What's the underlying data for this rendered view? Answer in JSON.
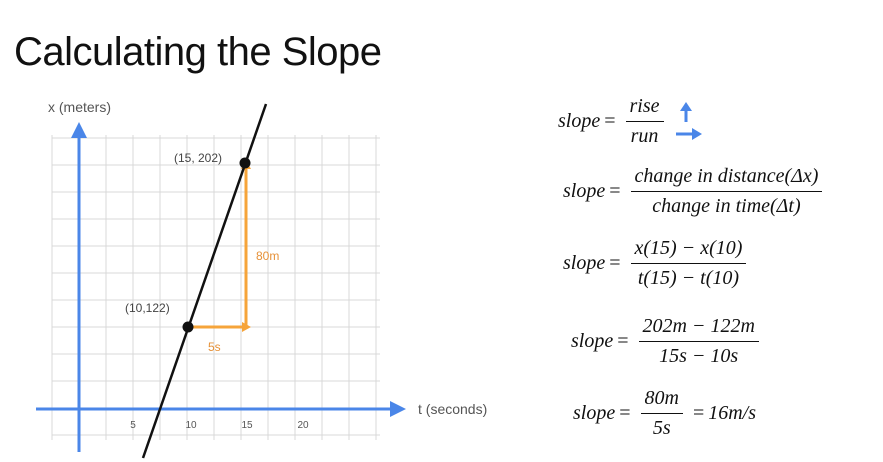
{
  "title": "Calculating the Slope",
  "graph": {
    "y_axis_label": "x (meters)",
    "x_axis_label": "t (seconds)",
    "x_ticks": [
      "5",
      "10",
      "15",
      "20"
    ],
    "point_a_label": "(10,122)",
    "point_b_label": "(15, 202)",
    "rise_label": "80m",
    "run_label": "5s",
    "colors": {
      "axis": "#4a86e8",
      "line": "#111111",
      "triangle": "#f6a43a",
      "grid": "#d9d9d9"
    }
  },
  "equations": {
    "eq1": {
      "lhs": "slope",
      "eq": "=",
      "num": "rise",
      "den": "run"
    },
    "eq2": {
      "lhs": "slope",
      "eq": "=",
      "num": "change in distance(Δx)",
      "den": "change in time(Δt)"
    },
    "eq3": {
      "lhs": "slope",
      "eq": "=",
      "num": "x(15) − x(10)",
      "den": "t(15) − t(10)"
    },
    "eq4": {
      "lhs": "slope",
      "eq": "=",
      "num": "202m − 122m",
      "den": "15s − 10s"
    },
    "eq5": {
      "lhs": "slope",
      "eq": "=",
      "num": "80m",
      "den": "5s",
      "eq2": "=",
      "result": "16m/s"
    }
  }
}
